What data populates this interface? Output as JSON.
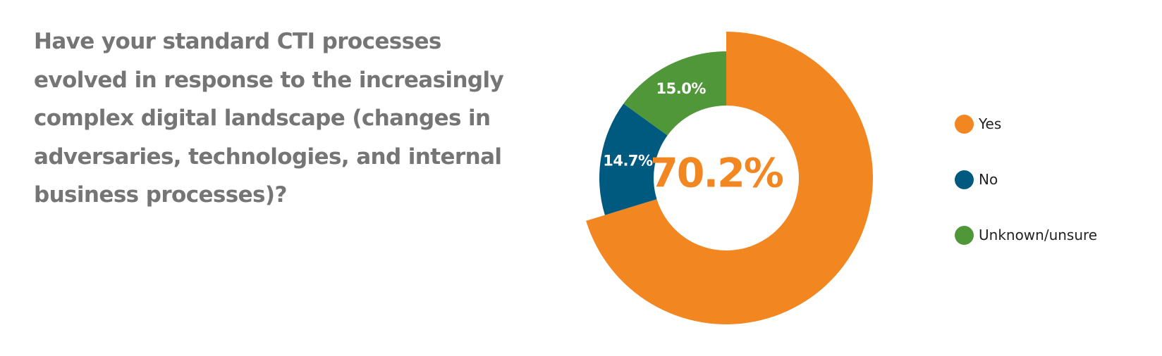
{
  "question": "Have your standard CTI processes evolved in response to the increasingly complex digital landscape (changes in adversaries, technologies, and internal business processes)?",
  "center_label": "70.2%",
  "chart_data": {
    "type": "pie",
    "variant": "donut",
    "title": "Have your standard CTI processes evolved in response to the increasingly complex digital landscape (changes in adversaries, technologies, and internal business processes)?",
    "series": [
      {
        "name": "Yes",
        "value": 70.2,
        "label": "70.2%",
        "color": "#F28722",
        "exploded": true
      },
      {
        "name": "No",
        "value": 14.7,
        "label": "14.7%",
        "color": "#005A80"
      },
      {
        "name": "Unknown/unsure",
        "value": 15.0,
        "label": "15.0%",
        "color": "#50973A"
      }
    ],
    "legend_placement": "right",
    "grid": false
  }
}
